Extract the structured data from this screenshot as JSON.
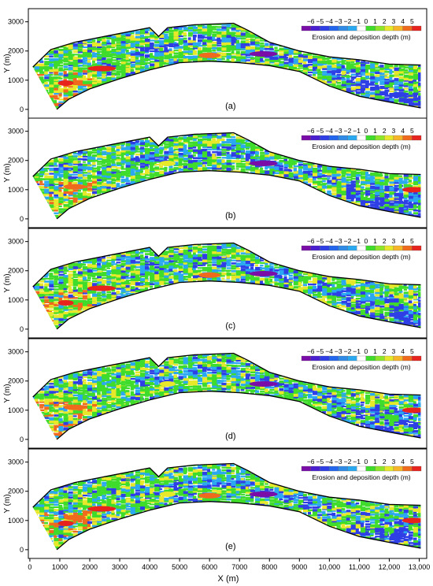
{
  "figure": {
    "x_axis_label": "X (m)",
    "y_axis_label": "Y (m)",
    "x_ticks": [
      "0",
      "1000",
      "2000",
      "3000",
      "4000",
      "5000",
      "6000",
      "7000",
      "8000",
      "9000",
      "10,000",
      "11,000",
      "12,000",
      "13,000"
    ],
    "y_ticks": [
      "0",
      "1000",
      "2000",
      "3000"
    ]
  },
  "legend": {
    "title": "Erosion and deposition depth (m)",
    "tick_labels": [
      "−6",
      "−5",
      "−4",
      "−3",
      "−2",
      "−1",
      "0",
      "1",
      "2",
      "3",
      "4",
      "5"
    ],
    "colors": [
      "#7a0ca8",
      "#4a1fd0",
      "#2f3fe6",
      "#2366ee",
      "#2f8be6",
      "#2aa8f0",
      "#ffffff",
      "#3fdc2c",
      "#8ee62a",
      "#e8e82a",
      "#f7b52a",
      "#f06a1e",
      "#e8231e"
    ]
  },
  "colors": {
    "channel_outline": "#000000",
    "deep_erosion": "#7a0ca8",
    "erosion": "#2f3fe6",
    "shallow_erosion": "#2aa8f0",
    "deposition": "#3fdc2c",
    "moderate_deposition": "#e8e82a",
    "high_deposition": "#f06a1e",
    "peak_deposition": "#e8231e"
  },
  "chart_data": [
    {
      "type": "heatmap",
      "panel": "(a)",
      "xlim": [
        0,
        13200
      ],
      "ylim": [
        0,
        3300
      ],
      "xlabel": "",
      "ylabel": "Y (m)",
      "colorbar_range": [
        -6,
        5
      ]
    },
    {
      "type": "heatmap",
      "panel": "(b)",
      "xlim": [
        0,
        13200
      ],
      "ylim": [
        0,
        3300
      ],
      "xlabel": "",
      "ylabel": "Y (m)",
      "colorbar_range": [
        -6,
        5
      ]
    },
    {
      "type": "heatmap",
      "panel": "(c)",
      "xlim": [
        0,
        13200
      ],
      "ylim": [
        0,
        3300
      ],
      "xlabel": "",
      "ylabel": "Y (m)",
      "colorbar_range": [
        -6,
        5
      ]
    },
    {
      "type": "heatmap",
      "panel": "(d)",
      "xlim": [
        0,
        13200
      ],
      "ylim": [
        0,
        3300
      ],
      "xlabel": "",
      "ylabel": "Y (m)",
      "colorbar_range": [
        -6,
        5
      ]
    },
    {
      "type": "heatmap",
      "panel": "(e)",
      "xlim": [
        0,
        13200
      ],
      "ylim": [
        0,
        3300
      ],
      "xlabel": "X (m)",
      "ylabel": "Y (m)",
      "colorbar_range": [
        -6,
        5
      ]
    }
  ]
}
